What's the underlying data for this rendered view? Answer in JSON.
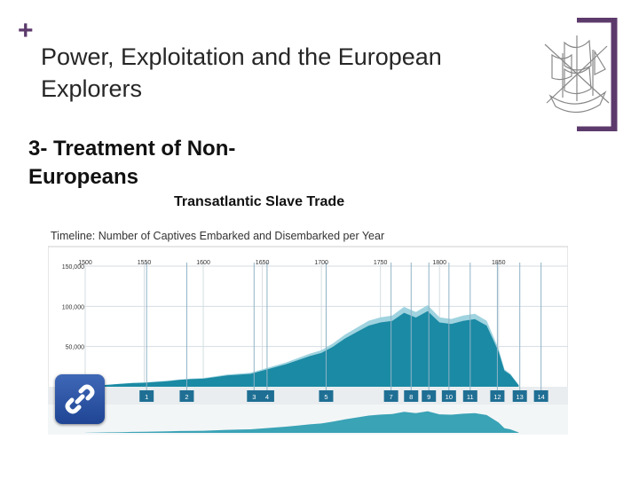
{
  "slide": {
    "plus": "+",
    "title": "Power, Exploitation and the European Explorers",
    "subtitle": "3- Treatment of Non-Europeans",
    "caption": "Transatlantic Slave Trade"
  },
  "icons": {
    "logo": "ship-logo-icon",
    "link": "hyperlink-icon"
  },
  "colors": {
    "accent": "#5c3a6b",
    "embarked": "#1b8aa4",
    "embarked_light": "#9fd3df",
    "link_button": "#2a55a8"
  },
  "chart_data": {
    "type": "area",
    "title": "Timeline: Number of Captives Embarked and Disembarked per Year",
    "xlabel": "",
    "ylabel": "",
    "xlim": [
      1500,
      1875
    ],
    "ylim": [
      0,
      150000
    ],
    "x_ticks": [
      "1500",
      "1550",
      "1600",
      "1650",
      "1700",
      "1750",
      "1800",
      "1850"
    ],
    "y_ticks": [
      "150,000",
      "100,000",
      "50,000"
    ],
    "grid": true,
    "x": [
      1500,
      1510,
      1520,
      1530,
      1540,
      1550,
      1560,
      1570,
      1580,
      1590,
      1600,
      1610,
      1620,
      1630,
      1640,
      1650,
      1660,
      1670,
      1680,
      1690,
      1700,
      1710,
      1720,
      1730,
      1740,
      1750,
      1760,
      1770,
      1780,
      1790,
      1800,
      1810,
      1820,
      1830,
      1840,
      1850,
      1855,
      1860,
      1867
    ],
    "series": [
      {
        "name": "Embarked",
        "values": [
          400,
          1500,
          2500,
          3500,
          4500,
          5000,
          6000,
          7000,
          8500,
          9500,
          10000,
          12000,
          14000,
          15000,
          16000,
          20000,
          24000,
          28000,
          33000,
          38000,
          42000,
          50000,
          60000,
          68000,
          76000,
          80000,
          82000,
          92000,
          86000,
          94000,
          80000,
          78000,
          82000,
          84000,
          76000,
          44000,
          20000,
          15000,
          2000
        ]
      },
      {
        "name": "Disembarked",
        "values": [
          300,
          1200,
          2000,
          2800,
          3700,
          4100,
          4900,
          5700,
          6900,
          7800,
          8100,
          9800,
          11500,
          12300,
          13200,
          16600,
          20000,
          23300,
          27600,
          32000,
          35400,
          42300,
          51000,
          58000,
          65000,
          68600,
          70500,
          79400,
          74500,
          81500,
          69800,
          68300,
          72000,
          74000,
          67000,
          39000,
          17800,
          13400,
          1800
        ]
      }
    ],
    "markers": [
      {
        "label": "1",
        "x": 1552
      },
      {
        "label": "2",
        "x": 1586
      },
      {
        "label": "3",
        "x": 1643
      },
      {
        "label": "4",
        "x": 1654
      },
      {
        "label": "5",
        "x": 1704
      },
      {
        "label": "7",
        "x": 1759
      },
      {
        "label": "8",
        "x": 1776
      },
      {
        "label": "9",
        "x": 1791
      },
      {
        "label": "10",
        "x": 1808
      },
      {
        "label": "11",
        "x": 1826
      },
      {
        "label": "12",
        "x": 1849
      },
      {
        "label": "13",
        "x": 1868
      },
      {
        "label": "14",
        "x": 1886
      }
    ]
  }
}
